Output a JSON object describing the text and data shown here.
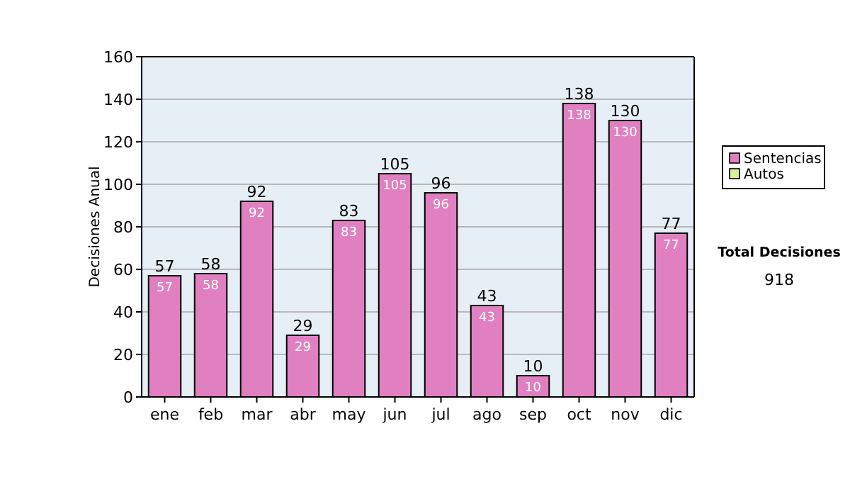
{
  "chart_data": {
    "type": "bar",
    "ylabel": "Decisiones Anual",
    "categories": [
      "ene",
      "feb",
      "mar",
      "abr",
      "may",
      "jun",
      "jul",
      "ago",
      "sep",
      "oct",
      "nov",
      "dic"
    ],
    "series": [
      {
        "name": "Sentencias",
        "color": "#e080c0",
        "values": [
          57,
          58,
          92,
          29,
          83,
          105,
          96,
          43,
          10,
          138,
          130,
          77
        ]
      },
      {
        "name": "Autos",
        "color": "#d8f0a0",
        "values": [
          null,
          null,
          null,
          null,
          null,
          null,
          null,
          null,
          null,
          null,
          null,
          null
        ]
      }
    ],
    "totals": [
      "57",
      "58",
      "92",
      "29",
      "83",
      "105",
      "96",
      "43",
      "10",
      "138",
      "130",
      "77"
    ],
    "data_labels": true,
    "ylim": [
      0,
      160
    ],
    "yticks": [
      0,
      20,
      40,
      60,
      80,
      100,
      120,
      140,
      160
    ],
    "grid": "y",
    "legend": "right",
    "annotations": [
      "Total Decisiones",
      "918"
    ]
  }
}
